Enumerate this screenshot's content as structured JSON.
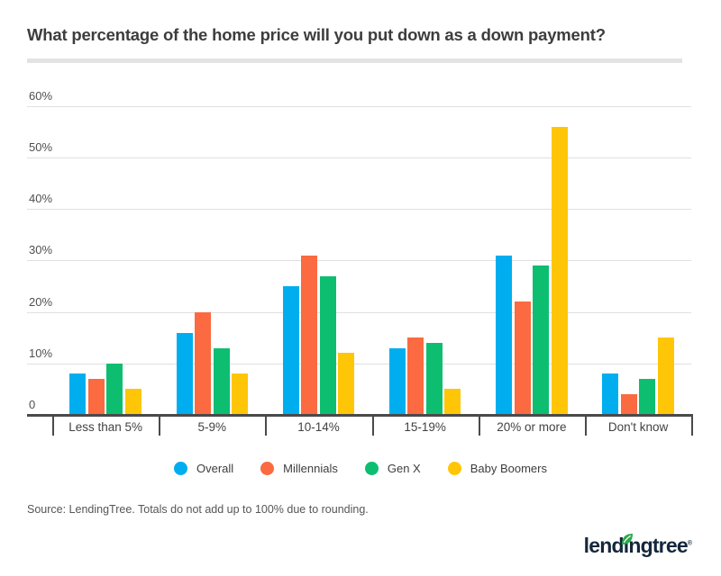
{
  "title": "What percentage of the home price will you put down as a down payment?",
  "source_note": "Source: LendingTree. Totals do not add up to 100% due to rounding.",
  "logo": {
    "text": "lendingtree",
    "registered": "®",
    "leaf_color": "#2aaa4a",
    "text_color": "#15273b"
  },
  "chart_data": {
    "type": "bar",
    "title": "What percentage of the home price will you put down as a down payment?",
    "categories": [
      "Less than 5%",
      "5-9%",
      "10-14%",
      "15-19%",
      "20% or more",
      "Don't know"
    ],
    "series": [
      {
        "name": "Overall",
        "color": "#00aeef",
        "values": [
          8,
          16,
          25,
          13,
          31,
          8
        ]
      },
      {
        "name": "Millennials",
        "color": "#fb6a40",
        "values": [
          7,
          20,
          31,
          15,
          22,
          4
        ]
      },
      {
        "name": "Gen X",
        "color": "#0dbe71",
        "values": [
          10,
          13,
          27,
          14,
          29,
          7
        ]
      },
      {
        "name": "Baby Boomers",
        "color": "#ffc608",
        "values": [
          5,
          8,
          12,
          5,
          56,
          15
        ]
      }
    ],
    "y_ticks": [
      {
        "label": "60%",
        "value": 60
      },
      {
        "label": "50%",
        "value": 50
      },
      {
        "label": "40%",
        "value": 40
      },
      {
        "label": "30%",
        "value": 30
      },
      {
        "label": "20%",
        "value": 20
      },
      {
        "label": "10%",
        "value": 10
      },
      {
        "label": "0",
        "value": 0
      }
    ],
    "ylim": [
      0,
      60
    ],
    "xlabel": "",
    "ylabel": "",
    "grid": true,
    "legend_position": "bottom",
    "axis_color": "#4a4a4a",
    "gridline_color": "#e0e0e0"
  }
}
